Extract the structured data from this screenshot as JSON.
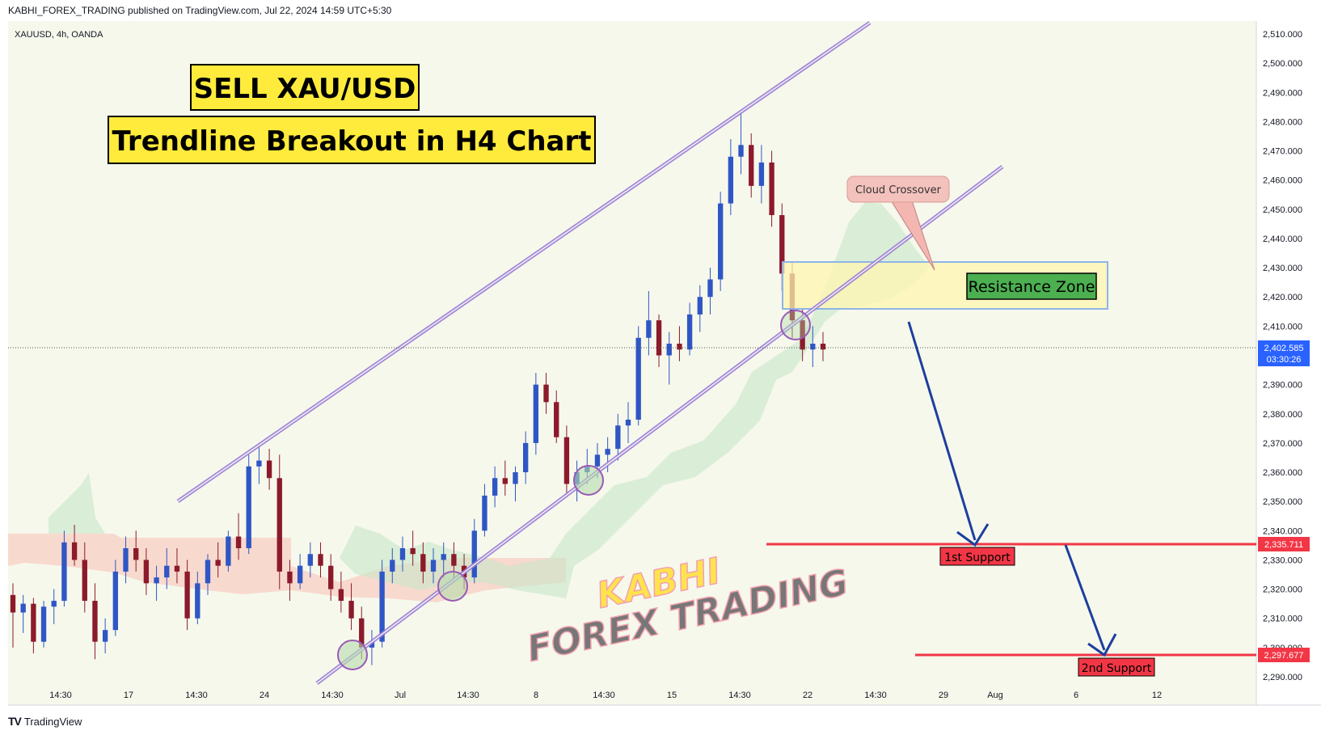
{
  "header": {
    "published_text": "KABHI_FOREX_TRADING published on TradingView.com, Jul 22, 2024 14:59 UTC+5:30"
  },
  "symbol_info": "XAUUSD, 4h, OANDA",
  "footer": {
    "logo_mark": "TV",
    "brand": "TradingView"
  },
  "title": {
    "line1": "SELL XAU/USD",
    "line2": "Trendline Breakout in H4 Chart"
  },
  "annotations": {
    "cloud_crossover": "Cloud Crossover",
    "resistance_zone": "Resistance Zone",
    "support1": "1st Support",
    "support2": "2nd Support"
  },
  "watermark": {
    "line1": "KABHI",
    "line2": "FOREX TRADING"
  },
  "current_price": {
    "value": "2,402.585",
    "countdown": "03:30:26"
  },
  "colors": {
    "up_candle": "#2f56c4",
    "down_candle": "#8b1a2b",
    "channel": "#9b7fd4",
    "support_line": "#f23645",
    "arrow": "#1c3f9e",
    "title_fill": "#ffeb3b",
    "resistance_fill": "#fff6b0",
    "resistance_border": "#8fb4e8",
    "cloud_green": "#c8e6c9",
    "cloud_red": "#f8cfc4"
  },
  "chart_data": {
    "type": "candlestick",
    "symbol": "XAUUSD",
    "timeframe": "4h",
    "ylim": [
      2290,
      2510
    ],
    "y_ticks": [
      "2,510.000",
      "2,500.000",
      "2,490.000",
      "2,480.000",
      "2,470.000",
      "2,460.000",
      "2,450.000",
      "2,440.000",
      "2,430.000",
      "2,420.000",
      "2,410.000",
      "2,400.000",
      "2,390.000",
      "2,380.000",
      "2,370.000",
      "2,360.000",
      "2,350.000",
      "2,340.000",
      "2,330.000",
      "2,320.000",
      "2,310.000",
      "2,300.000",
      "2,290.000"
    ],
    "x_ticks": [
      "14:30",
      "17",
      "14:30",
      "24",
      "14:30",
      "Jul",
      "14:30",
      "8",
      "14:30",
      "15",
      "14:30",
      "22",
      "14:30",
      "29",
      "Aug",
      "6",
      "12"
    ],
    "support_levels": [
      {
        "name": "1st Support",
        "value": 2335.711,
        "label": "2,335.711"
      },
      {
        "name": "2nd Support",
        "value": 2297.677,
        "label": "2,297.677"
      }
    ],
    "resistance_zone": [
      2416,
      2432
    ],
    "last_price": 2402.585,
    "ohlc": [
      [
        2318,
        2322,
        2300,
        2312
      ],
      [
        2312,
        2318,
        2305,
        2315
      ],
      [
        2315,
        2317,
        2298,
        2302
      ],
      [
        2302,
        2316,
        2300,
        2314
      ],
      [
        2314,
        2320,
        2308,
        2316
      ],
      [
        2316,
        2340,
        2314,
        2336
      ],
      [
        2336,
        2342,
        2328,
        2330
      ],
      [
        2330,
        2336,
        2312,
        2316
      ],
      [
        2316,
        2322,
        2296,
        2302
      ],
      [
        2302,
        2310,
        2298,
        2306
      ],
      [
        2306,
        2330,
        2304,
        2326
      ],
      [
        2326,
        2338,
        2322,
        2334
      ],
      [
        2334,
        2340,
        2326,
        2330
      ],
      [
        2330,
        2334,
        2318,
        2322
      ],
      [
        2322,
        2328,
        2316,
        2324
      ],
      [
        2324,
        2334,
        2320,
        2328
      ],
      [
        2328,
        2334,
        2322,
        2326
      ],
      [
        2326,
        2330,
        2306,
        2310
      ],
      [
        2310,
        2326,
        2308,
        2322
      ],
      [
        2322,
        2332,
        2318,
        2330
      ],
      [
        2330,
        2336,
        2324,
        2328
      ],
      [
        2328,
        2340,
        2326,
        2338
      ],
      [
        2338,
        2346,
        2330,
        2334
      ],
      [
        2334,
        2366,
        2332,
        2362
      ],
      [
        2362,
        2369,
        2356,
        2364
      ],
      [
        2364,
        2368,
        2354,
        2358
      ],
      [
        2358,
        2366,
        2320,
        2326
      ],
      [
        2326,
        2330,
        2316,
        2322
      ],
      [
        2322,
        2332,
        2320,
        2328
      ],
      [
        2328,
        2336,
        2324,
        2332
      ],
      [
        2332,
        2336,
        2324,
        2328
      ],
      [
        2328,
        2332,
        2316,
        2320
      ],
      [
        2320,
        2326,
        2312,
        2316
      ],
      [
        2316,
        2322,
        2306,
        2310
      ],
      [
        2310,
        2314,
        2296,
        2300
      ],
      [
        2300,
        2306,
        2294,
        2302
      ],
      [
        2302,
        2330,
        2300,
        2326
      ],
      [
        2326,
        2334,
        2322,
        2330
      ],
      [
        2330,
        2338,
        2326,
        2334
      ],
      [
        2334,
        2340,
        2328,
        2332
      ],
      [
        2332,
        2336,
        2322,
        2326
      ],
      [
        2326,
        2334,
        2322,
        2330
      ],
      [
        2330,
        2336,
        2324,
        2332
      ],
      [
        2332,
        2336,
        2324,
        2328
      ],
      [
        2328,
        2332,
        2320,
        2324
      ],
      [
        2324,
        2344,
        2322,
        2340
      ],
      [
        2340,
        2356,
        2338,
        2352
      ],
      [
        2352,
        2362,
        2348,
        2358
      ],
      [
        2358,
        2364,
        2352,
        2356
      ],
      [
        2356,
        2362,
        2350,
        2360
      ],
      [
        2360,
        2374,
        2356,
        2370
      ],
      [
        2370,
        2394,
        2366,
        2390
      ],
      [
        2390,
        2394,
        2380,
        2384
      ],
      [
        2384,
        2388,
        2370,
        2372
      ],
      [
        2372,
        2376,
        2352,
        2356
      ],
      [
        2356,
        2364,
        2350,
        2360
      ],
      [
        2360,
        2368,
        2356,
        2362
      ],
      [
        2362,
        2370,
        2358,
        2366
      ],
      [
        2366,
        2372,
        2360,
        2368
      ],
      [
        2368,
        2380,
        2364,
        2376
      ],
      [
        2376,
        2384,
        2370,
        2378
      ],
      [
        2378,
        2410,
        2376,
        2406
      ],
      [
        2406,
        2422,
        2400,
        2412
      ],
      [
        2412,
        2414,
        2396,
        2400
      ],
      [
        2400,
        2408,
        2390,
        2404
      ],
      [
        2404,
        2410,
        2398,
        2402
      ],
      [
        2402,
        2418,
        2400,
        2414
      ],
      [
        2414,
        2424,
        2408,
        2420
      ],
      [
        2420,
        2430,
        2414,
        2426
      ],
      [
        2426,
        2456,
        2422,
        2452
      ],
      [
        2452,
        2474,
        2448,
        2468
      ],
      [
        2468,
        2484,
        2462,
        2472
      ],
      [
        2472,
        2476,
        2454,
        2458
      ],
      [
        2458,
        2472,
        2452,
        2466
      ],
      [
        2466,
        2470,
        2444,
        2448
      ],
      [
        2448,
        2452,
        2422,
        2428
      ],
      [
        2428,
        2432,
        2406,
        2412
      ],
      [
        2412,
        2416,
        2398,
        2402
      ],
      [
        2402,
        2410,
        2396,
        2404
      ],
      [
        2404,
        2408,
        2398,
        2402
      ]
    ]
  }
}
